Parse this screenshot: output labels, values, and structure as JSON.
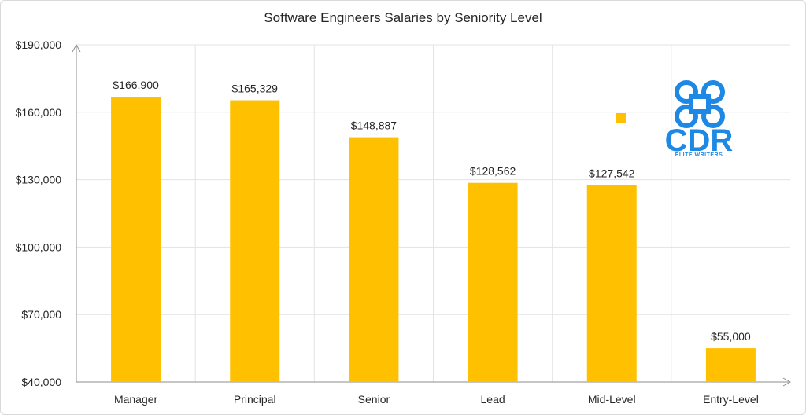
{
  "chart_data": {
    "type": "bar",
    "title": "Software Engineers Salaries by Seniority Level",
    "categories": [
      "Manager",
      "Principal",
      "Senior",
      "Lead",
      "Mid-Level",
      "Entry-Level"
    ],
    "values": [
      166900,
      165329,
      148887,
      128562,
      127542,
      55000
    ],
    "data_labels": [
      "$166,900",
      "$165,329",
      "$148,887",
      "$128,562",
      "$127,542",
      "$55,000"
    ],
    "ylim": [
      40000,
      190000
    ],
    "yticks": [
      40000,
      70000,
      100000,
      130000,
      160000,
      190000
    ],
    "ytick_labels": [
      "$40,000",
      "$70,000",
      "$100,000",
      "$130,000",
      "$160,000",
      "$190,000"
    ],
    "xlabel": "",
    "ylabel": "",
    "grid": true,
    "bar_color": "#ffc000"
  },
  "logo": {
    "mark": "CDR",
    "text": "ELITE WRITERS",
    "color": "#1e88e5"
  }
}
